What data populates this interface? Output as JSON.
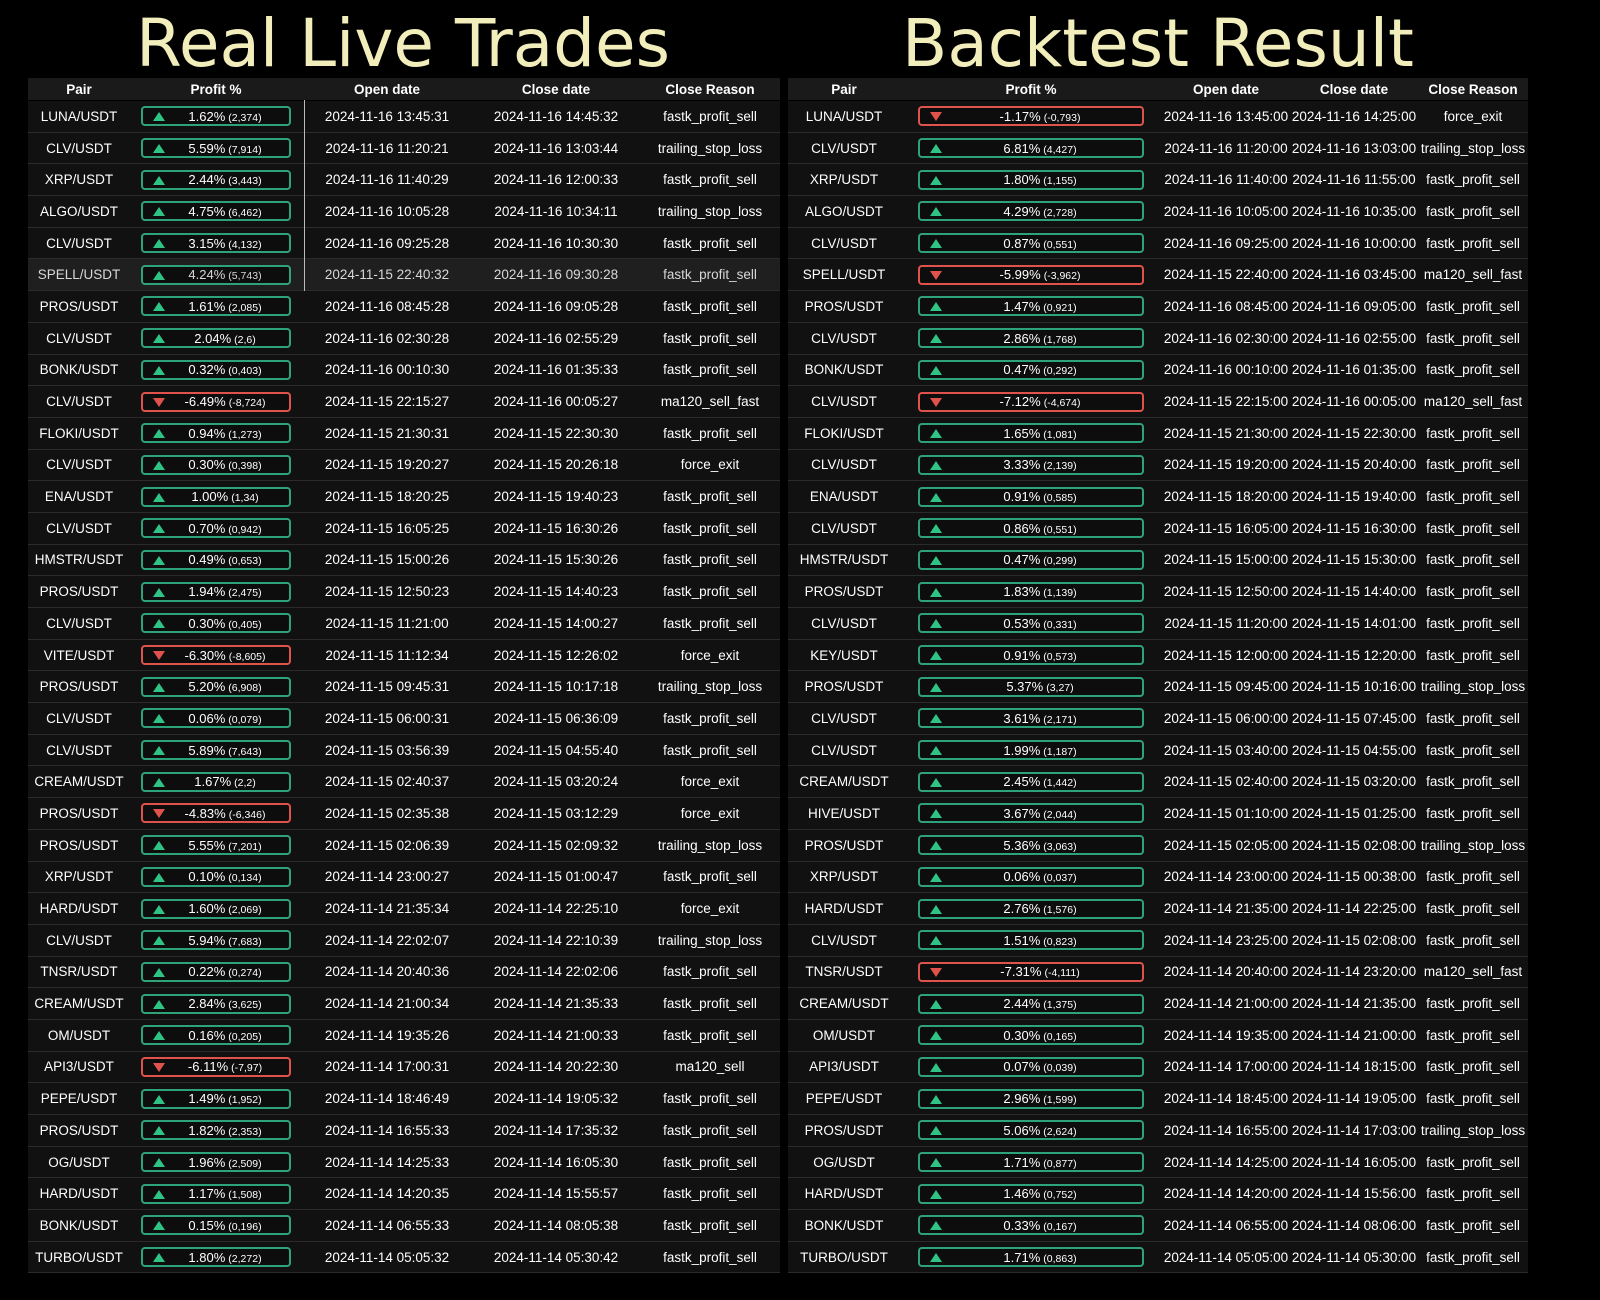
{
  "titles": {
    "left": "Real Live Trades",
    "right": "Backtest Result"
  },
  "headers": {
    "pair": "Pair",
    "profit": "Profit %",
    "open_date": "Open date",
    "close_date": "Close date",
    "close_reason": "Close Reason"
  },
  "colors": {
    "positive": "#2ea37a",
    "negative": "#e0524c",
    "title": "#f2eebc",
    "annotation": "#e01b1b"
  },
  "live_trades": [
    {
      "pair": "LUNA/USDT",
      "pct": "1.62%",
      "abs": "(2,374)",
      "positive": true,
      "open": "2024-11-16 13:45:31",
      "close": "2024-11-16 14:45:32",
      "reason": "fastk_profit_sell"
    },
    {
      "pair": "CLV/USDT",
      "pct": "5.59%",
      "abs": "(7,914)",
      "positive": true,
      "open": "2024-11-16 11:20:21",
      "close": "2024-11-16 13:03:44",
      "reason": "trailing_stop_loss"
    },
    {
      "pair": "XRP/USDT",
      "pct": "2.44%",
      "abs": "(3,443)",
      "positive": true,
      "open": "2024-11-16 11:40:29",
      "close": "2024-11-16 12:00:33",
      "reason": "fastk_profit_sell"
    },
    {
      "pair": "ALGO/USDT",
      "pct": "4.75%",
      "abs": "(6,462)",
      "positive": true,
      "open": "2024-11-16 10:05:28",
      "close": "2024-11-16 10:34:11",
      "reason": "trailing_stop_loss"
    },
    {
      "pair": "CLV/USDT",
      "pct": "3.15%",
      "abs": "(4,132)",
      "positive": true,
      "open": "2024-11-16 09:25:28",
      "close": "2024-11-16 10:30:30",
      "reason": "fastk_profit_sell"
    },
    {
      "pair": "SPELL/USDT",
      "pct": "4.24%",
      "abs": "(5,743)",
      "positive": true,
      "open": "2024-11-15 22:40:32",
      "close": "2024-11-16 09:30:28",
      "reason": "fastk_profit_sell",
      "highlight": true
    },
    {
      "pair": "PROS/USDT",
      "pct": "1.61%",
      "abs": "(2,085)",
      "positive": true,
      "open": "2024-11-16 08:45:28",
      "close": "2024-11-16 09:05:28",
      "reason": "fastk_profit_sell"
    },
    {
      "pair": "CLV/USDT",
      "pct": "2.04%",
      "abs": "(2,6)",
      "positive": true,
      "open": "2024-11-16 02:30:28",
      "close": "2024-11-16 02:55:29",
      "reason": "fastk_profit_sell"
    },
    {
      "pair": "BONK/USDT",
      "pct": "0.32%",
      "abs": "(0,403)",
      "positive": true,
      "open": "2024-11-16 00:10:30",
      "close": "2024-11-16 01:35:33",
      "reason": "fastk_profit_sell"
    },
    {
      "pair": "CLV/USDT",
      "pct": "-6.49%",
      "abs": "(-8,724)",
      "positive": false,
      "open": "2024-11-15 22:15:27",
      "close": "2024-11-16 00:05:27",
      "reason": "ma120_sell_fast"
    },
    {
      "pair": "FLOKI/USDT",
      "pct": "0.94%",
      "abs": "(1,273)",
      "positive": true,
      "open": "2024-11-15 21:30:31",
      "close": "2024-11-15 22:30:30",
      "reason": "fastk_profit_sell"
    },
    {
      "pair": "CLV/USDT",
      "pct": "0.30%",
      "abs": "(0,398)",
      "positive": true,
      "open": "2024-11-15 19:20:27",
      "close": "2024-11-15 20:26:18",
      "reason": "force_exit",
      "mark_reason": true
    },
    {
      "pair": "ENA/USDT",
      "pct": "1.00%",
      "abs": "(1,34)",
      "positive": true,
      "open": "2024-11-15 18:20:25",
      "close": "2024-11-15 19:40:23",
      "reason": "fastk_profit_sell"
    },
    {
      "pair": "CLV/USDT",
      "pct": "0.70%",
      "abs": "(0,942)",
      "positive": true,
      "open": "2024-11-15 16:05:25",
      "close": "2024-11-15 16:30:26",
      "reason": "fastk_profit_sell"
    },
    {
      "pair": "HMSTR/USDT",
      "pct": "0.49%",
      "abs": "(0,653)",
      "positive": true,
      "open": "2024-11-15 15:00:26",
      "close": "2024-11-15 15:30:26",
      "reason": "fastk_profit_sell"
    },
    {
      "pair": "PROS/USDT",
      "pct": "1.94%",
      "abs": "(2,475)",
      "positive": true,
      "open": "2024-11-15 12:50:23",
      "close": "2024-11-15 14:40:23",
      "reason": "fastk_profit_sell"
    },
    {
      "pair": "CLV/USDT",
      "pct": "0.30%",
      "abs": "(0,405)",
      "positive": true,
      "open": "2024-11-15 11:21:00",
      "close": "2024-11-15 14:00:27",
      "reason": "fastk_profit_sell"
    },
    {
      "pair": "VITE/USDT",
      "pct": "-6.30%",
      "abs": "(-8,605)",
      "positive": false,
      "open": "2024-11-15 11:12:34",
      "close": "2024-11-15 12:26:02",
      "reason": "force_exit",
      "mark_pair": true,
      "mark_reason": true
    },
    {
      "pair": "PROS/USDT",
      "pct": "5.20%",
      "abs": "(6,908)",
      "positive": true,
      "open": "2024-11-15 09:45:31",
      "close": "2024-11-15 10:17:18",
      "reason": "trailing_stop_loss"
    },
    {
      "pair": "CLV/USDT",
      "pct": "0.06%",
      "abs": "(0,079)",
      "positive": true,
      "open": "2024-11-15 06:00:31",
      "close": "2024-11-15 06:36:09",
      "reason": "fastk_profit_sell"
    },
    {
      "pair": "CLV/USDT",
      "pct": "5.89%",
      "abs": "(7,643)",
      "positive": true,
      "open": "2024-11-15 03:56:39",
      "close": "2024-11-15 04:55:40",
      "reason": "fastk_profit_sell"
    },
    {
      "pair": "CREAM/USDT",
      "pct": "1.67%",
      "abs": "(2,2)",
      "positive": true,
      "open": "2024-11-15 02:40:37",
      "close": "2024-11-15 03:20:24",
      "reason": "force_exit",
      "mark_reason": true
    },
    {
      "pair": "PROS/USDT",
      "pct": "-4.83%",
      "abs": "(-6,346)",
      "positive": false,
      "open": "2024-11-15 02:35:38",
      "close": "2024-11-15 03:12:29",
      "reason": "force_exit",
      "mark_pair": true,
      "mark_reason": true
    },
    {
      "pair": "PROS/USDT",
      "pct": "5.55%",
      "abs": "(7,201)",
      "positive": true,
      "open": "2024-11-15 02:06:39",
      "close": "2024-11-15 02:09:32",
      "reason": "trailing_stop_loss"
    },
    {
      "pair": "XRP/USDT",
      "pct": "0.10%",
      "abs": "(0,134)",
      "positive": true,
      "open": "2024-11-14 23:00:27",
      "close": "2024-11-15 01:00:47",
      "reason": "fastk_profit_sell"
    },
    {
      "pair": "HARD/USDT",
      "pct": "1.60%",
      "abs": "(2,069)",
      "positive": true,
      "open": "2024-11-14 21:35:34",
      "close": "2024-11-14 22:25:10",
      "reason": "force_exit",
      "mark_reason": true
    },
    {
      "pair": "CLV/USDT",
      "pct": "5.94%",
      "abs": "(7,683)",
      "positive": true,
      "open": "2024-11-14 22:02:07",
      "close": "2024-11-14 22:10:39",
      "reason": "trailing_stop_loss"
    },
    {
      "pair": "TNSR/USDT",
      "pct": "0.22%",
      "abs": "(0,274)",
      "positive": true,
      "open": "2024-11-14 20:40:36",
      "close": "2024-11-14 22:02:06",
      "reason": "fastk_profit_sell"
    },
    {
      "pair": "CREAM/USDT",
      "pct": "2.84%",
      "abs": "(3,625)",
      "positive": true,
      "open": "2024-11-14 21:00:34",
      "close": "2024-11-14 21:35:33",
      "reason": "fastk_profit_sell"
    },
    {
      "pair": "OM/USDT",
      "pct": "0.16%",
      "abs": "(0,205)",
      "positive": true,
      "open": "2024-11-14 19:35:26",
      "close": "2024-11-14 21:00:33",
      "reason": "fastk_profit_sell"
    },
    {
      "pair": "API3/USDT",
      "pct": "-6.11%",
      "abs": "(-7,97)",
      "positive": false,
      "open": "2024-11-14 17:00:31",
      "close": "2024-11-14 20:22:30",
      "reason": "ma120_sell"
    },
    {
      "pair": "PEPE/USDT",
      "pct": "1.49%",
      "abs": "(1,952)",
      "positive": true,
      "open": "2024-11-14 18:46:49",
      "close": "2024-11-14 19:05:32",
      "reason": "fastk_profit_sell"
    },
    {
      "pair": "PROS/USDT",
      "pct": "1.82%",
      "abs": "(2,353)",
      "positive": true,
      "open": "2024-11-14 16:55:33",
      "close": "2024-11-14 17:35:32",
      "reason": "fastk_profit_sell"
    },
    {
      "pair": "OG/USDT",
      "pct": "1.96%",
      "abs": "(2,509)",
      "positive": true,
      "open": "2024-11-14 14:25:33",
      "close": "2024-11-14 16:05:30",
      "reason": "fastk_profit_sell"
    },
    {
      "pair": "HARD/USDT",
      "pct": "1.17%",
      "abs": "(1,508)",
      "positive": true,
      "open": "2024-11-14 14:20:35",
      "close": "2024-11-14 15:55:57",
      "reason": "fastk_profit_sell"
    },
    {
      "pair": "BONK/USDT",
      "pct": "0.15%",
      "abs": "(0,196)",
      "positive": true,
      "open": "2024-11-14 06:55:33",
      "close": "2024-11-14 08:05:38",
      "reason": "fastk_profit_sell"
    },
    {
      "pair": "TURBO/USDT",
      "pct": "1.80%",
      "abs": "(2,272)",
      "positive": true,
      "open": "2024-11-14 05:05:32",
      "close": "2024-11-14 05:30:42",
      "reason": "fastk_profit_sell"
    }
  ],
  "backtest_trades": [
    {
      "pair": "LUNA/USDT",
      "pct": "-1.17%",
      "abs": "(-0,793)",
      "positive": false,
      "open": "2024-11-16 13:45:00",
      "close": "2024-11-16 14:25:00",
      "reason": "force_exit",
      "mark_reason": true
    },
    {
      "pair": "CLV/USDT",
      "pct": "6.81%",
      "abs": "(4,427)",
      "positive": true,
      "open": "2024-11-16 11:20:00",
      "close": "2024-11-16 13:03:00",
      "reason": "trailing_stop_loss"
    },
    {
      "pair": "XRP/USDT",
      "pct": "1.80%",
      "abs": "(1,155)",
      "positive": true,
      "open": "2024-11-16 11:40:00",
      "close": "2024-11-16 11:55:00",
      "reason": "fastk_profit_sell"
    },
    {
      "pair": "ALGO/USDT",
      "pct": "4.29%",
      "abs": "(2,728)",
      "positive": true,
      "open": "2024-11-16 10:05:00",
      "close": "2024-11-16 10:35:00",
      "reason": "fastk_profit_sell"
    },
    {
      "pair": "CLV/USDT",
      "pct": "0.87%",
      "abs": "(0,551)",
      "positive": true,
      "open": "2024-11-16 09:25:00",
      "close": "2024-11-16 10:00:00",
      "reason": "fastk_profit_sell"
    },
    {
      "pair": "SPELL/USDT",
      "pct": "-5.99%",
      "abs": "(-3,962)",
      "positive": false,
      "open": "2024-11-15 22:40:00",
      "close": "2024-11-16 03:45:00",
      "reason": "ma120_sell_fast"
    },
    {
      "pair": "PROS/USDT",
      "pct": "1.47%",
      "abs": "(0,921)",
      "positive": true,
      "open": "2024-11-16 08:45:00",
      "close": "2024-11-16 09:05:00",
      "reason": "fastk_profit_sell"
    },
    {
      "pair": "CLV/USDT",
      "pct": "2.86%",
      "abs": "(1,768)",
      "positive": true,
      "open": "2024-11-16 02:30:00",
      "close": "2024-11-16 02:55:00",
      "reason": "fastk_profit_sell"
    },
    {
      "pair": "BONK/USDT",
      "pct": "0.47%",
      "abs": "(0,292)",
      "positive": true,
      "open": "2024-11-16 00:10:00",
      "close": "2024-11-16 01:35:00",
      "reason": "fastk_profit_sell"
    },
    {
      "pair": "CLV/USDT",
      "pct": "-7.12%",
      "abs": "(-4,674)",
      "positive": false,
      "open": "2024-11-15 22:15:00",
      "close": "2024-11-16 00:05:00",
      "reason": "ma120_sell_fast"
    },
    {
      "pair": "FLOKI/USDT",
      "pct": "1.65%",
      "abs": "(1,081)",
      "positive": true,
      "open": "2024-11-15 21:30:00",
      "close": "2024-11-15 22:30:00",
      "reason": "fastk_profit_sell"
    },
    {
      "pair": "CLV/USDT",
      "pct": "3.33%",
      "abs": "(2,139)",
      "positive": true,
      "open": "2024-11-15 19:20:00",
      "close": "2024-11-15 20:40:00",
      "reason": "fastk_profit_sell"
    },
    {
      "pair": "ENA/USDT",
      "pct": "0.91%",
      "abs": "(0,585)",
      "positive": true,
      "open": "2024-11-15 18:20:00",
      "close": "2024-11-15 19:40:00",
      "reason": "fastk_profit_sell"
    },
    {
      "pair": "CLV/USDT",
      "pct": "0.86%",
      "abs": "(0,551)",
      "positive": true,
      "open": "2024-11-15 16:05:00",
      "close": "2024-11-15 16:30:00",
      "reason": "fastk_profit_sell"
    },
    {
      "pair": "HMSTR/USDT",
      "pct": "0.47%",
      "abs": "(0,299)",
      "positive": true,
      "open": "2024-11-15 15:00:00",
      "close": "2024-11-15 15:30:00",
      "reason": "fastk_profit_sell"
    },
    {
      "pair": "PROS/USDT",
      "pct": "1.83%",
      "abs": "(1,139)",
      "positive": true,
      "open": "2024-11-15 12:50:00",
      "close": "2024-11-15 14:40:00",
      "reason": "fastk_profit_sell"
    },
    {
      "pair": "CLV/USDT",
      "pct": "0.53%",
      "abs": "(0,331)",
      "positive": true,
      "open": "2024-11-15 11:20:00",
      "close": "2024-11-15 14:01:00",
      "reason": "fastk_profit_sell"
    },
    {
      "pair": "KEY/USDT",
      "pct": "0.91%",
      "abs": "(0,573)",
      "positive": true,
      "open": "2024-11-15 12:00:00",
      "close": "2024-11-15 12:20:00",
      "reason": "fastk_profit_sell",
      "mark_pair": true
    },
    {
      "pair": "PROS/USDT",
      "pct": "5.37%",
      "abs": "(3,27)",
      "positive": true,
      "open": "2024-11-15 09:45:00",
      "close": "2024-11-15 10:16:00",
      "reason": "trailing_stop_loss"
    },
    {
      "pair": "CLV/USDT",
      "pct": "3.61%",
      "abs": "(2,171)",
      "positive": true,
      "open": "2024-11-15 06:00:00",
      "close": "2024-11-15 07:45:00",
      "reason": "fastk_profit_sell"
    },
    {
      "pair": "CLV/USDT",
      "pct": "1.99%",
      "abs": "(1,187)",
      "positive": true,
      "open": "2024-11-15 03:40:00",
      "close": "2024-11-15 04:55:00",
      "reason": "fastk_profit_sell"
    },
    {
      "pair": "CREAM/USDT",
      "pct": "2.45%",
      "abs": "(1,442)",
      "positive": true,
      "open": "2024-11-15 02:40:00",
      "close": "2024-11-15 03:20:00",
      "reason": "fastk_profit_sell"
    },
    {
      "pair": "HIVE/USDT",
      "pct": "3.67%",
      "abs": "(2,044)",
      "positive": true,
      "open": "2024-11-15 01:10:00",
      "close": "2024-11-15 01:25:00",
      "reason": "fastk_profit_sell",
      "mark_pair": true
    },
    {
      "pair": "PROS/USDT",
      "pct": "5.36%",
      "abs": "(3,063)",
      "positive": true,
      "open": "2024-11-15 02:05:00",
      "close": "2024-11-15 02:08:00",
      "reason": "trailing_stop_loss"
    },
    {
      "pair": "XRP/USDT",
      "pct": "0.06%",
      "abs": "(0,037)",
      "positive": true,
      "open": "2024-11-14 23:00:00",
      "close": "2024-11-15 00:38:00",
      "reason": "fastk_profit_sell"
    },
    {
      "pair": "HARD/USDT",
      "pct": "2.76%",
      "abs": "(1,576)",
      "positive": true,
      "open": "2024-11-14 21:35:00",
      "close": "2024-11-14 22:25:00",
      "reason": "fastk_profit_sell"
    },
    {
      "pair": "CLV/USDT",
      "pct": "1.51%",
      "abs": "(0,823)",
      "positive": true,
      "open": "2024-11-14 23:25:00",
      "close": "2024-11-15 02:08:00",
      "reason": "fastk_profit_sell"
    },
    {
      "pair": "TNSR/USDT",
      "pct": "-7.31%",
      "abs": "(-4,111)",
      "positive": false,
      "open": "2024-11-14 20:40:00",
      "close": "2024-11-14 23:20:00",
      "reason": "ma120_sell_fast"
    },
    {
      "pair": "CREAM/USDT",
      "pct": "2.44%",
      "abs": "(1,375)",
      "positive": true,
      "open": "2024-11-14 21:00:00",
      "close": "2024-11-14 21:35:00",
      "reason": "fastk_profit_sell"
    },
    {
      "pair": "OM/USDT",
      "pct": "0.30%",
      "abs": "(0,165)",
      "positive": true,
      "open": "2024-11-14 19:35:00",
      "close": "2024-11-14 21:00:00",
      "reason": "fastk_profit_sell"
    },
    {
      "pair": "API3/USDT",
      "pct": "0.07%",
      "abs": "(0,039)",
      "positive": true,
      "open": "2024-11-14 17:00:00",
      "close": "2024-11-14 18:15:00",
      "reason": "fastk_profit_sell"
    },
    {
      "pair": "PEPE/USDT",
      "pct": "2.96%",
      "abs": "(1,599)",
      "positive": true,
      "open": "2024-11-14 18:45:00",
      "close": "2024-11-14 19:05:00",
      "reason": "fastk_profit_sell"
    },
    {
      "pair": "PROS/USDT",
      "pct": "5.06%",
      "abs": "(2,624)",
      "positive": true,
      "open": "2024-11-14 16:55:00",
      "close": "2024-11-14 17:03:00",
      "reason": "trailing_stop_loss"
    },
    {
      "pair": "OG/USDT",
      "pct": "1.71%",
      "abs": "(0,877)",
      "positive": true,
      "open": "2024-11-14 14:25:00",
      "close": "2024-11-14 16:05:00",
      "reason": "fastk_profit_sell"
    },
    {
      "pair": "HARD/USDT",
      "pct": "1.46%",
      "abs": "(0,752)",
      "positive": true,
      "open": "2024-11-14 14:20:00",
      "close": "2024-11-14 15:56:00",
      "reason": "fastk_profit_sell"
    },
    {
      "pair": "BONK/USDT",
      "pct": "0.33%",
      "abs": "(0,167)",
      "positive": true,
      "open": "2024-11-14 06:55:00",
      "close": "2024-11-14 08:06:00",
      "reason": "fastk_profit_sell"
    },
    {
      "pair": "TURBO/USDT",
      "pct": "1.71%",
      "abs": "(0,863)",
      "positive": true,
      "open": "2024-11-14 05:05:00",
      "close": "2024-11-14 05:30:00",
      "reason": "fastk_profit_sell"
    }
  ]
}
